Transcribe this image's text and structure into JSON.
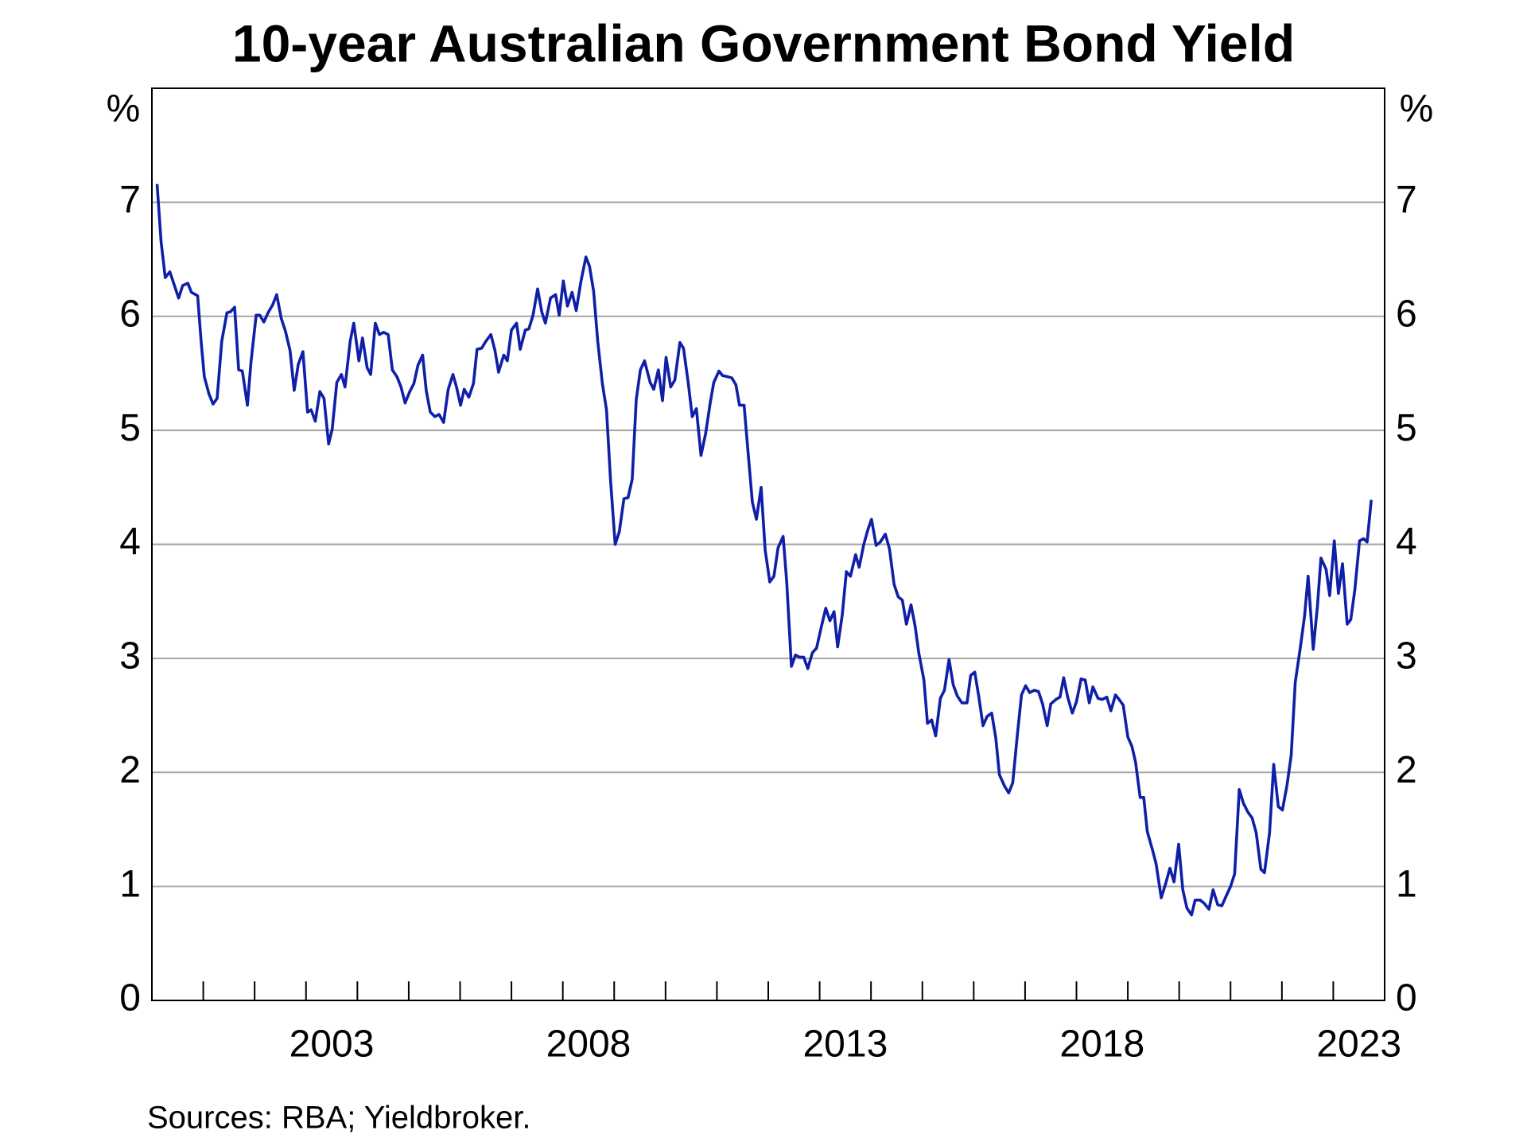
{
  "chart_data": {
    "type": "line",
    "title": "10-year Australian Government Bond Yield",
    "ylabel": "%",
    "source": "Sources: RBA; Yieldbroker.",
    "xlim": [
      2000,
      2024
    ],
    "xticks": [
      {
        "value": 2003.5,
        "label": "2003"
      },
      {
        "value": 2008.5,
        "label": "2008"
      },
      {
        "value": 2013.5,
        "label": "2013"
      },
      {
        "value": 2018.5,
        "label": "2018"
      },
      {
        "value": 2023.5,
        "label": "2023"
      }
    ],
    "xminor_ticks": [
      2001,
      2002,
      2003,
      2004,
      2005,
      2006,
      2007,
      2008,
      2009,
      2010,
      2011,
      2012,
      2013,
      2014,
      2015,
      2016,
      2017,
      2018,
      2019,
      2020,
      2021,
      2022,
      2023
    ],
    "ylim": [
      0,
      8
    ],
    "yticks": [
      0,
      1,
      2,
      3,
      4,
      5,
      6,
      7
    ],
    "grid": true,
    "series": [
      {
        "color": "#0f1fa8",
        "x": [
          2000.1,
          2000.18,
          2000.26,
          2000.35,
          2000.52,
          2000.6,
          2000.7,
          2000.77,
          2000.89,
          2000.96,
          2001.02,
          2001.11,
          2001.19,
          2001.27,
          2001.36,
          2001.46,
          2001.53,
          2001.61,
          2001.69,
          2001.76,
          2001.86,
          2001.93,
          2002.03,
          2002.1,
          2002.18,
          2002.26,
          2002.35,
          2002.43,
          2002.52,
          2002.6,
          2002.69,
          2002.77,
          2002.85,
          2002.94,
          2003.03,
          2003.1,
          2003.18,
          2003.27,
          2003.35,
          2003.44,
          2003.51,
          2003.6,
          2003.69,
          2003.76,
          2003.86,
          2003.93,
          2004.03,
          2004.1,
          2004.19,
          2004.26,
          2004.35,
          2004.43,
          2004.51,
          2004.6,
          2004.68,
          2004.77,
          2004.85,
          2004.93,
          2005.02,
          2005.1,
          2005.18,
          2005.27,
          2005.34,
          2005.42,
          2005.51,
          2005.59,
          2005.68,
          2005.77,
          2005.86,
          2005.93,
          2006.01,
          2006.08,
          2006.17,
          2006.26,
          2006.33,
          2006.42,
          2006.5,
          2006.6,
          2006.68,
          2006.75,
          2006.85,
          2006.92,
          2007.0,
          2007.1,
          2007.17,
          2007.27,
          2007.34,
          2007.42,
          2007.51,
          2007.59,
          2007.66,
          2007.76,
          2007.86,
          2007.93,
          2008.01,
          2008.09,
          2008.18,
          2008.26,
          2008.35,
          2008.45,
          2008.52,
          2008.6,
          2008.68,
          2008.77,
          2008.85,
          2008.93,
          2009.02,
          2009.1,
          2009.19,
          2009.27,
          2009.35,
          2009.43,
          2009.51,
          2009.59,
          2009.7,
          2009.77,
          2009.86,
          2009.94,
          2010.01,
          2010.1,
          2010.18,
          2010.28,
          2010.35,
          2010.44,
          2010.52,
          2010.6,
          2010.69,
          2010.78,
          2010.87,
          2010.94,
          2011.04,
          2011.11,
          2011.21,
          2011.29,
          2011.37,
          2011.44,
          2011.53,
          2011.61,
          2011.69,
          2011.77,
          2011.86,
          2011.94,
          2012.03,
          2012.11,
          2012.19,
          2012.29,
          2012.36,
          2012.45,
          2012.53,
          2012.61,
          2012.69,
          2012.77,
          2012.86,
          2012.94,
          2013.03,
          2013.12,
          2013.2,
          2013.28,
          2013.35,
          2013.44,
          2013.52,
          2013.6,
          2013.7,
          2013.77,
          2013.86,
          2013.94,
          2014.01,
          2014.1,
          2014.18,
          2014.28,
          2014.36,
          2014.45,
          2014.53,
          2014.61,
          2014.69,
          2014.78,
          2014.86,
          2014.93,
          2015.03,
          2015.1,
          2015.18,
          2015.26,
          2015.35,
          2015.43,
          2015.52,
          2015.6,
          2015.68,
          2015.77,
          2015.87,
          2015.94,
          2016.02,
          2016.1,
          2016.18,
          2016.26,
          2016.35,
          2016.43,
          2016.5,
          2016.6,
          2016.68,
          2016.76,
          2016.85,
          2016.93,
          2017.01,
          2017.09,
          2017.18,
          2017.26,
          2017.34,
          2017.43,
          2017.5,
          2017.6,
          2017.68,
          2017.75,
          2017.83,
          2017.92,
          2018.0,
          2018.09,
          2018.17,
          2018.25,
          2018.32,
          2018.42,
          2018.5,
          2018.59,
          2018.67,
          2018.76,
          2018.83,
          2018.91,
          2019.0,
          2019.08,
          2019.15,
          2019.24,
          2019.31,
          2019.38,
          2019.48,
          2019.55,
          2019.65,
          2019.74,
          2019.82,
          2019.9,
          2019.99,
          2020.07,
          2020.15,
          2020.24,
          2020.31,
          2020.41,
          2020.49,
          2020.58,
          2020.66,
          2020.75,
          2020.83,
          2020.91,
          2021.0,
          2021.08,
          2021.17,
          2021.25,
          2021.34,
          2021.42,
          2021.5,
          2021.59,
          2021.66,
          2021.76,
          2021.84,
          2021.93,
          2022.01,
          2022.1,
          2022.18,
          2022.26,
          2022.36,
          2022.44,
          2022.51,
          2022.61,
          2022.69,
          2022.76,
          2022.86,
          2022.93,
          2023.02,
          2023.1,
          2023.18,
          2023.27,
          2023.34,
          2023.42,
          2023.51,
          2023.59,
          2023.66,
          2023.74
        ],
        "values": [
          7.16,
          6.65,
          6.34,
          6.39,
          6.16,
          6.27,
          6.29,
          6.21,
          6.18,
          5.77,
          5.47,
          5.32,
          5.23,
          5.28,
          5.78,
          6.03,
          6.04,
          6.08,
          5.53,
          5.52,
          5.22,
          5.6,
          6.01,
          6.01,
          5.95,
          6.03,
          6.1,
          6.19,
          5.98,
          5.87,
          5.7,
          5.35,
          5.58,
          5.69,
          5.16,
          5.18,
          5.08,
          5.34,
          5.28,
          4.88,
          5.01,
          5.42,
          5.49,
          5.38,
          5.78,
          5.94,
          5.61,
          5.81,
          5.55,
          5.49,
          5.94,
          5.84,
          5.86,
          5.84,
          5.53,
          5.47,
          5.38,
          5.24,
          5.34,
          5.41,
          5.57,
          5.66,
          5.35,
          5.16,
          5.12,
          5.14,
          5.07,
          5.36,
          5.49,
          5.38,
          5.22,
          5.36,
          5.29,
          5.41,
          5.71,
          5.72,
          5.78,
          5.84,
          5.7,
          5.51,
          5.66,
          5.61,
          5.88,
          5.94,
          5.71,
          5.88,
          5.89,
          6.01,
          6.24,
          6.04,
          5.94,
          6.16,
          6.19,
          6.01,
          6.31,
          6.09,
          6.21,
          6.05,
          6.3,
          6.52,
          6.44,
          6.22,
          5.78,
          5.41,
          5.18,
          4.56,
          4.0,
          4.11,
          4.4,
          4.41,
          4.57,
          5.27,
          5.53,
          5.61,
          5.42,
          5.36,
          5.53,
          5.26,
          5.64,
          5.38,
          5.44,
          5.77,
          5.72,
          5.42,
          5.12,
          5.19,
          4.78,
          4.97,
          5.24,
          5.42,
          5.52,
          5.48,
          5.47,
          5.46,
          5.4,
          5.22,
          5.22,
          4.79,
          4.37,
          4.22,
          4.5,
          3.95,
          3.67,
          3.72,
          3.97,
          4.07,
          3.67,
          2.93,
          3.03,
          3.01,
          3.01,
          2.91,
          3.05,
          3.09,
          3.27,
          3.44,
          3.33,
          3.41,
          3.1,
          3.38,
          3.76,
          3.72,
          3.91,
          3.8,
          4.0,
          4.13,
          4.22,
          3.99,
          4.02,
          4.09,
          3.96,
          3.65,
          3.54,
          3.51,
          3.3,
          3.47,
          3.28,
          3.05,
          2.81,
          2.43,
          2.46,
          2.32,
          2.65,
          2.72,
          2.99,
          2.77,
          2.67,
          2.61,
          2.61,
          2.85,
          2.88,
          2.66,
          2.41,
          2.49,
          2.52,
          2.3,
          1.98,
          1.88,
          1.82,
          1.91,
          2.33,
          2.68,
          2.76,
          2.7,
          2.72,
          2.71,
          2.6,
          2.41,
          2.6,
          2.64,
          2.66,
          2.83,
          2.66,
          2.52,
          2.62,
          2.82,
          2.81,
          2.61,
          2.75,
          2.65,
          2.64,
          2.66,
          2.54,
          2.68,
          2.64,
          2.59,
          2.31,
          2.23,
          2.09,
          1.78,
          1.78,
          1.48,
          1.32,
          1.2,
          0.9,
          1.03,
          1.16,
          1.04,
          1.37,
          0.97,
          0.81,
          0.75,
          0.88,
          0.88,
          0.85,
          0.8,
          0.97,
          0.84,
          0.83,
          0.91,
          1.0,
          1.11,
          1.85,
          1.73,
          1.65,
          1.6,
          1.47,
          1.15,
          1.12,
          1.47,
          2.07,
          1.7,
          1.67,
          1.89,
          2.15,
          2.79,
          3.1,
          3.37,
          3.72,
          3.08,
          3.45,
          3.88,
          3.78,
          3.55,
          4.03,
          3.57,
          3.83,
          3.3,
          3.34,
          3.6,
          4.03,
          4.05,
          4.02,
          4.39
        ]
      }
    ]
  }
}
